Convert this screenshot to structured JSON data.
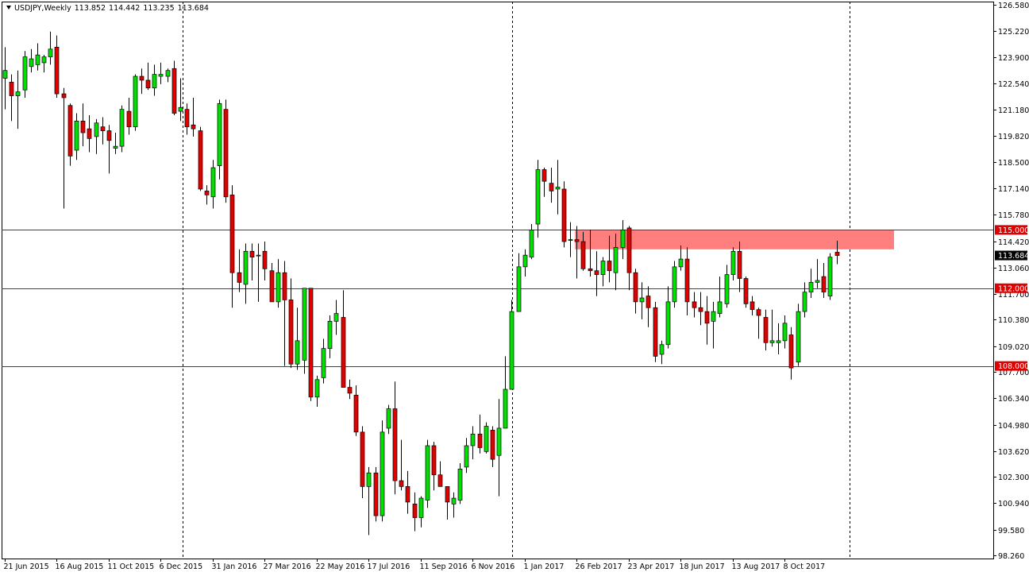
{
  "header": {
    "symbol": "USDJPY,Weekly",
    "open": "113.852",
    "high": "114.442",
    "low": "113.235",
    "close": "113.684"
  },
  "colors": {
    "bull": "#00e000",
    "bear": "#e00000",
    "line": "#e00000",
    "zone": "#ff7f7f",
    "grid": "#000000",
    "current_label": "#000000"
  },
  "chart_data": {
    "type": "candlestick",
    "y_ticks": [
      "126.580",
      "125.220",
      "123.900",
      "122.540",
      "121.180",
      "119.820",
      "118.500",
      "117.140",
      "115.780",
      "114.420",
      "113.060",
      "111.700",
      "110.380",
      "109.020",
      "107.700",
      "106.340",
      "104.980",
      "103.620",
      "102.300",
      "100.940",
      "99.580",
      "98.260"
    ],
    "x_ticks": [
      "21 Jun 2015",
      "16 Aug 2015",
      "11 Oct 2015",
      "6 Dec 2015",
      "31 Jan 2016",
      "27 Mar 2016",
      "22 May 2016",
      "17 Jul 2016",
      "11 Sep 2016",
      "6 Nov 2016",
      "1 Jan 2017",
      "26 Feb 2017",
      "23 Apr 2017",
      "18 Jun 2017",
      "13 Aug 2017",
      "8 Oct 2017"
    ],
    "period_separators": [
      "2016",
      "2017",
      "2018"
    ],
    "ylim": [
      98.26,
      126.58
    ],
    "horizontal_lines": [
      {
        "value": 115.0,
        "label": "115.000"
      },
      {
        "value": 112.0,
        "label": "112.000"
      },
      {
        "value": 108.0,
        "label": "108.000"
      }
    ],
    "zone": {
      "low": 114.0,
      "high": 115.0,
      "from": "26 Feb 2017"
    },
    "current_price": {
      "value": 113.684,
      "label": "113.684"
    },
    "candles": [
      {
        "o": 122.8,
        "h": 124.4,
        "l": 121.2,
        "c": 123.2
      },
      {
        "o": 122.6,
        "h": 123.0,
        "l": 120.6,
        "c": 121.9
      },
      {
        "o": 121.9,
        "h": 123.2,
        "l": 120.2,
        "c": 122.1
      },
      {
        "o": 122.2,
        "h": 124.2,
        "l": 121.8,
        "c": 123.9
      },
      {
        "o": 123.4,
        "h": 124.3,
        "l": 123.1,
        "c": 123.8
      },
      {
        "o": 123.5,
        "h": 124.6,
        "l": 123.2,
        "c": 124.0
      },
      {
        "o": 123.6,
        "h": 124.0,
        "l": 123.1,
        "c": 123.9
      },
      {
        "o": 123.9,
        "h": 125.2,
        "l": 123.5,
        "c": 124.3
      },
      {
        "o": 124.4,
        "h": 125.0,
        "l": 121.8,
        "c": 122.0
      },
      {
        "o": 122.0,
        "h": 122.3,
        "l": 116.1,
        "c": 121.8
      },
      {
        "o": 121.4,
        "h": 121.5,
        "l": 118.3,
        "c": 118.8
      },
      {
        "o": 119.1,
        "h": 121.0,
        "l": 118.6,
        "c": 120.6
      },
      {
        "o": 120.6,
        "h": 121.5,
        "l": 119.3,
        "c": 120.0
      },
      {
        "o": 120.2,
        "h": 120.9,
        "l": 119.0,
        "c": 119.7
      },
      {
        "o": 119.8,
        "h": 120.7,
        "l": 118.9,
        "c": 120.5
      },
      {
        "o": 120.3,
        "h": 120.8,
        "l": 119.4,
        "c": 120.1
      },
      {
        "o": 120.1,
        "h": 120.4,
        "l": 117.9,
        "c": 119.6
      },
      {
        "o": 119.2,
        "h": 120.0,
        "l": 118.9,
        "c": 119.3
      },
      {
        "o": 119.3,
        "h": 121.4,
        "l": 119.0,
        "c": 121.2
      },
      {
        "o": 121.1,
        "h": 121.8,
        "l": 119.9,
        "c": 120.3
      },
      {
        "o": 120.3,
        "h": 123.0,
        "l": 120.1,
        "c": 122.9
      },
      {
        "o": 122.9,
        "h": 123.3,
        "l": 122.0,
        "c": 122.7
      },
      {
        "o": 122.7,
        "h": 123.6,
        "l": 122.2,
        "c": 122.3
      },
      {
        "o": 122.3,
        "h": 123.5,
        "l": 121.9,
        "c": 123.0
      },
      {
        "o": 122.9,
        "h": 123.6,
        "l": 122.5,
        "c": 123.0
      },
      {
        "o": 122.9,
        "h": 123.3,
        "l": 122.6,
        "c": 123.2
      },
      {
        "o": 123.3,
        "h": 123.7,
        "l": 120.9,
        "c": 121.0
      },
      {
        "o": 121.1,
        "h": 122.8,
        "l": 120.6,
        "c": 121.3
      },
      {
        "o": 121.2,
        "h": 121.5,
        "l": 119.9,
        "c": 120.3
      },
      {
        "o": 120.4,
        "h": 121.8,
        "l": 119.8,
        "c": 120.2
      },
      {
        "o": 120.1,
        "h": 120.3,
        "l": 117.0,
        "c": 117.1
      },
      {
        "o": 117.0,
        "h": 117.3,
        "l": 116.3,
        "c": 116.8
      },
      {
        "o": 116.7,
        "h": 118.6,
        "l": 116.1,
        "c": 118.2
      },
      {
        "o": 118.3,
        "h": 121.7,
        "l": 117.6,
        "c": 121.5
      },
      {
        "o": 121.2,
        "h": 121.7,
        "l": 116.4,
        "c": 116.7
      },
      {
        "o": 116.8,
        "h": 117.3,
        "l": 111.0,
        "c": 112.8
      },
      {
        "o": 112.8,
        "h": 114.0,
        "l": 111.8,
        "c": 112.3
      },
      {
        "o": 112.2,
        "h": 114.3,
        "l": 111.2,
        "c": 113.9
      },
      {
        "o": 113.9,
        "h": 114.3,
        "l": 112.4,
        "c": 113.6
      },
      {
        "o": 113.7,
        "h": 114.3,
        "l": 111.3,
        "c": 113.7
      },
      {
        "o": 113.9,
        "h": 114.4,
        "l": 112.4,
        "c": 113.0
      },
      {
        "o": 112.9,
        "h": 113.3,
        "l": 111.4,
        "c": 111.3
      },
      {
        "o": 111.3,
        "h": 113.5,
        "l": 111.0,
        "c": 112.8
      },
      {
        "o": 112.8,
        "h": 113.4,
        "l": 108.0,
        "c": 111.4
      },
      {
        "o": 111.4,
        "h": 112.5,
        "l": 107.9,
        "c": 108.1
      },
      {
        "o": 108.1,
        "h": 111.0,
        "l": 107.8,
        "c": 109.3
      },
      {
        "o": 108.3,
        "h": 112.0,
        "l": 107.6,
        "c": 112.0
      },
      {
        "o": 112.0,
        "h": 112.0,
        "l": 106.2,
        "c": 106.4
      },
      {
        "o": 106.4,
        "h": 107.5,
        "l": 105.9,
        "c": 107.3
      },
      {
        "o": 107.4,
        "h": 109.4,
        "l": 107.1,
        "c": 108.9
      },
      {
        "o": 108.9,
        "h": 110.6,
        "l": 108.4,
        "c": 110.3
      },
      {
        "o": 110.3,
        "h": 111.4,
        "l": 109.6,
        "c": 110.7
      },
      {
        "o": 110.5,
        "h": 111.9,
        "l": 106.9,
        "c": 106.9
      },
      {
        "o": 106.9,
        "h": 107.3,
        "l": 106.3,
        "c": 106.6
      },
      {
        "o": 106.5,
        "h": 107.0,
        "l": 104.4,
        "c": 104.6
      },
      {
        "o": 104.6,
        "h": 104.9,
        "l": 101.2,
        "c": 101.8
      },
      {
        "o": 101.8,
        "h": 102.8,
        "l": 99.3,
        "c": 102.5
      },
      {
        "o": 102.5,
        "h": 102.8,
        "l": 100.0,
        "c": 100.3
      },
      {
        "o": 100.3,
        "h": 105.2,
        "l": 100.0,
        "c": 104.6
      },
      {
        "o": 104.8,
        "h": 106.0,
        "l": 104.5,
        "c": 105.8
      },
      {
        "o": 105.8,
        "h": 107.2,
        "l": 101.4,
        "c": 102.1
      },
      {
        "o": 102.1,
        "h": 104.2,
        "l": 101.6,
        "c": 101.8
      },
      {
        "o": 101.8,
        "h": 102.6,
        "l": 100.4,
        "c": 101.0
      },
      {
        "o": 100.9,
        "h": 101.5,
        "l": 99.5,
        "c": 100.2
      },
      {
        "o": 100.2,
        "h": 101.3,
        "l": 99.7,
        "c": 101.2
      },
      {
        "o": 101.1,
        "h": 104.2,
        "l": 100.7,
        "c": 103.9
      },
      {
        "o": 103.9,
        "h": 104.1,
        "l": 101.6,
        "c": 102.4
      },
      {
        "o": 102.4,
        "h": 103.1,
        "l": 101.8,
        "c": 101.8
      },
      {
        "o": 101.8,
        "h": 101.8,
        "l": 100.1,
        "c": 101.0
      },
      {
        "o": 100.9,
        "h": 101.5,
        "l": 100.2,
        "c": 101.2
      },
      {
        "o": 101.1,
        "h": 103.0,
        "l": 100.9,
        "c": 102.7
      },
      {
        "o": 102.8,
        "h": 104.3,
        "l": 102.5,
        "c": 103.9
      },
      {
        "o": 103.9,
        "h": 104.9,
        "l": 103.2,
        "c": 104.5
      },
      {
        "o": 104.5,
        "h": 105.5,
        "l": 103.5,
        "c": 103.8
      },
      {
        "o": 103.6,
        "h": 105.1,
        "l": 103.5,
        "c": 104.9
      },
      {
        "o": 104.7,
        "h": 104.9,
        "l": 102.8,
        "c": 103.2
      },
      {
        "o": 103.4,
        "h": 106.3,
        "l": 101.3,
        "c": 104.8
      },
      {
        "o": 104.8,
        "h": 108.5,
        "l": 104.8,
        "c": 106.8
      },
      {
        "o": 106.8,
        "h": 111.4,
        "l": 106.8,
        "c": 110.8
      },
      {
        "o": 110.8,
        "h": 113.8,
        "l": 110.8,
        "c": 113.1
      },
      {
        "o": 113.1,
        "h": 114.0,
        "l": 112.6,
        "c": 113.7
      },
      {
        "o": 113.6,
        "h": 115.3,
        "l": 113.5,
        "c": 115.0
      },
      {
        "o": 115.3,
        "h": 118.6,
        "l": 114.6,
        "c": 118.1
      },
      {
        "o": 118.1,
        "h": 118.2,
        "l": 116.7,
        "c": 117.5
      },
      {
        "o": 117.4,
        "h": 118.2,
        "l": 116.4,
        "c": 117.0
      },
      {
        "o": 117.1,
        "h": 118.6,
        "l": 115.8,
        "c": 117.2
      },
      {
        "o": 117.1,
        "h": 117.5,
        "l": 114.1,
        "c": 114.4
      },
      {
        "o": 114.5,
        "h": 115.4,
        "l": 113.6,
        "c": 114.5
      },
      {
        "o": 114.5,
        "h": 115.2,
        "l": 112.5,
        "c": 114.4
      },
      {
        "o": 114.4,
        "h": 114.9,
        "l": 112.9,
        "c": 113.0
      },
      {
        "o": 113.0,
        "h": 115.0,
        "l": 112.6,
        "c": 112.9
      },
      {
        "o": 112.9,
        "h": 113.9,
        "l": 111.6,
        "c": 112.7
      },
      {
        "o": 112.7,
        "h": 113.6,
        "l": 112.1,
        "c": 113.4
      },
      {
        "o": 113.4,
        "h": 114.7,
        "l": 112.3,
        "c": 112.9
      },
      {
        "o": 112.8,
        "h": 114.8,
        "l": 111.9,
        "c": 114.1
      },
      {
        "o": 114.1,
        "h": 115.5,
        "l": 113.5,
        "c": 115.0
      },
      {
        "o": 115.1,
        "h": 115.2,
        "l": 111.9,
        "c": 112.8
      },
      {
        "o": 112.8,
        "h": 113.0,
        "l": 110.7,
        "c": 111.3
      },
      {
        "o": 111.3,
        "h": 112.3,
        "l": 110.4,
        "c": 111.5
      },
      {
        "o": 111.6,
        "h": 112.1,
        "l": 110.0,
        "c": 111.0
      },
      {
        "o": 111.0,
        "h": 111.3,
        "l": 108.2,
        "c": 108.5
      },
      {
        "o": 108.6,
        "h": 109.3,
        "l": 108.1,
        "c": 109.1
      },
      {
        "o": 109.1,
        "h": 112.1,
        "l": 108.9,
        "c": 111.3
      },
      {
        "o": 111.3,
        "h": 113.4,
        "l": 111.0,
        "c": 113.1
      },
      {
        "o": 113.1,
        "h": 114.2,
        "l": 112.9,
        "c": 113.5
      },
      {
        "o": 113.5,
        "h": 114.1,
        "l": 110.6,
        "c": 111.3
      },
      {
        "o": 111.3,
        "h": 111.8,
        "l": 110.5,
        "c": 111.0
      },
      {
        "o": 111.0,
        "h": 111.8,
        "l": 110.1,
        "c": 110.8
      },
      {
        "o": 110.8,
        "h": 111.6,
        "l": 109.1,
        "c": 110.2
      },
      {
        "o": 110.3,
        "h": 111.3,
        "l": 108.9,
        "c": 110.8
      },
      {
        "o": 110.7,
        "h": 112.6,
        "l": 110.5,
        "c": 111.3
      },
      {
        "o": 111.2,
        "h": 113.2,
        "l": 111.0,
        "c": 112.7
      },
      {
        "o": 112.7,
        "h": 114.1,
        "l": 112.4,
        "c": 113.9
      },
      {
        "o": 113.9,
        "h": 114.4,
        "l": 111.8,
        "c": 112.5
      },
      {
        "o": 112.5,
        "h": 112.6,
        "l": 111.0,
        "c": 111.2
      },
      {
        "o": 111.3,
        "h": 111.6,
        "l": 110.6,
        "c": 110.9
      },
      {
        "o": 110.9,
        "h": 111.0,
        "l": 109.4,
        "c": 110.6
      },
      {
        "o": 110.5,
        "h": 110.9,
        "l": 108.8,
        "c": 109.2
      },
      {
        "o": 109.2,
        "h": 110.9,
        "l": 109.0,
        "c": 109.3
      },
      {
        "o": 109.2,
        "h": 110.2,
        "l": 108.6,
        "c": 109.3
      },
      {
        "o": 109.3,
        "h": 110.6,
        "l": 108.9,
        "c": 110.2
      },
      {
        "o": 109.6,
        "h": 110.0,
        "l": 107.3,
        "c": 107.9
      },
      {
        "o": 108.2,
        "h": 111.2,
        "l": 108.0,
        "c": 110.8
      },
      {
        "o": 110.8,
        "h": 112.3,
        "l": 110.5,
        "c": 111.8
      },
      {
        "o": 111.8,
        "h": 113.0,
        "l": 111.5,
        "c": 112.3
      },
      {
        "o": 112.3,
        "h": 113.5,
        "l": 112.0,
        "c": 112.4
      },
      {
        "o": 112.6,
        "h": 113.3,
        "l": 111.5,
        "c": 111.8
      },
      {
        "o": 111.6,
        "h": 113.8,
        "l": 111.4,
        "c": 113.6
      },
      {
        "o": 113.852,
        "h": 114.442,
        "l": 113.235,
        "c": 113.684
      }
    ]
  }
}
